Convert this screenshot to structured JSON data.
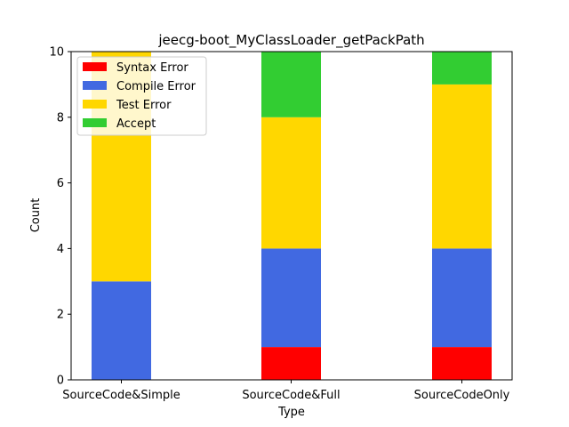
{
  "chart_data": {
    "type": "bar",
    "stacked": true,
    "title": "jeecg-boot_MyClassLoader_getPackPath",
    "xlabel": "Type",
    "ylabel": "Count",
    "categories": [
      "SourceCode&Simple",
      "SourceCode&Full",
      "SourceCodeOnly"
    ],
    "ylim": [
      0,
      10
    ],
    "yticks": [
      0,
      2,
      4,
      6,
      8,
      10
    ],
    "legend_position": "top-left",
    "grid": false,
    "series": [
      {
        "name": "Syntax Error",
        "color": "#ff0000",
        "values": [
          0,
          1,
          1
        ]
      },
      {
        "name": "Compile Error",
        "color": "#4169e1",
        "values": [
          3,
          3,
          3
        ]
      },
      {
        "name": "Test Error",
        "color": "#ffd700",
        "values": [
          7,
          4,
          5
        ]
      },
      {
        "name": "Accept",
        "color": "#32cd32",
        "values": [
          0,
          2,
          1
        ]
      }
    ]
  }
}
